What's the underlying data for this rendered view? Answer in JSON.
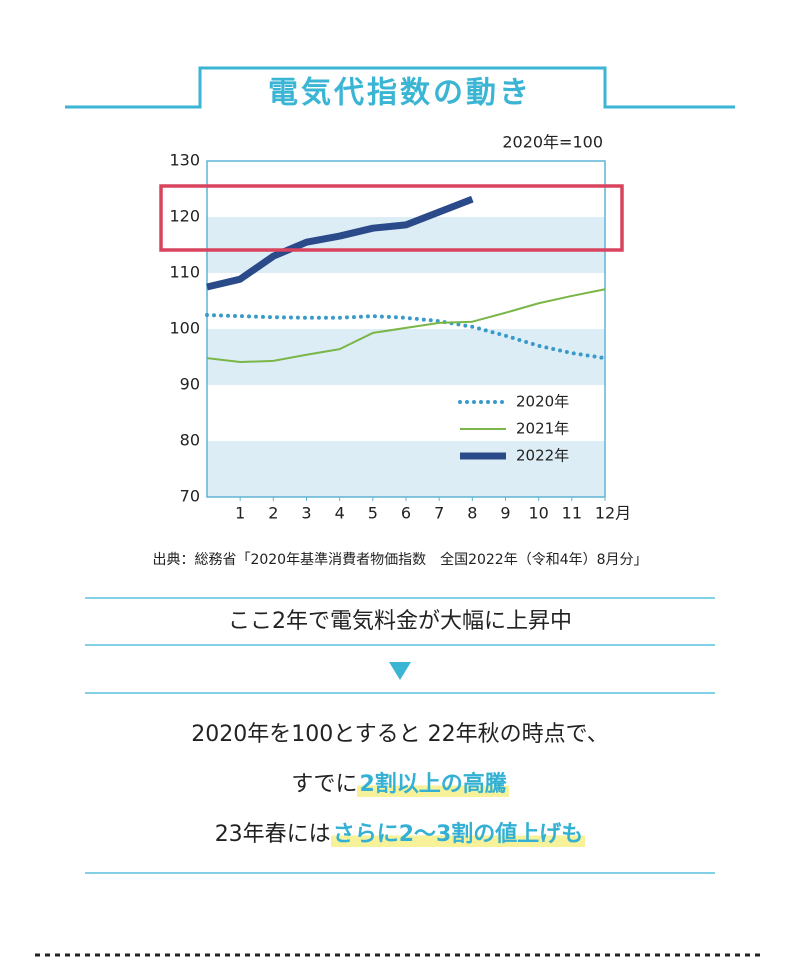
{
  "chart_data": {
    "type": "line",
    "title": "電気代指数の動き",
    "unit_note": "2020年=100",
    "source": "出典：総務省「2020年基準消費者物価指数　全国2022年（令和4年）8月分」",
    "x": [
      0,
      1,
      2,
      3,
      4,
      5,
      6,
      7,
      8,
      9,
      10,
      11,
      12
    ],
    "xlim": [
      0,
      12
    ],
    "xticks": [
      1,
      2,
      3,
      4,
      5,
      6,
      7,
      8,
      9,
      10,
      11,
      {
        "value": 12,
        "label": "12月"
      }
    ],
    "ylim": [
      70,
      130
    ],
    "yticks": [
      70,
      80,
      90,
      100,
      110,
      120,
      130
    ],
    "legend": "lower right",
    "series": [
      {
        "name": "2020年",
        "color": "#3a9ac9",
        "style": "dotted",
        "values": [
          102.5,
          102.3,
          102.1,
          102,
          102,
          102.3,
          102,
          101.4,
          100.4,
          98.8,
          97,
          95.7,
          94.8
        ]
      },
      {
        "name": "2021年",
        "color": "#7ab648",
        "style": "solid",
        "values": [
          94.8,
          94.1,
          94.3,
          95.4,
          96.4,
          99.3,
          100.2,
          101.1,
          101.3,
          102.9,
          104.6,
          105.9,
          107.1
        ]
      },
      {
        "name": "2022年",
        "color": "#2a4a8a",
        "style": "thick",
        "values": [
          107.5,
          108.9,
          113,
          115.5,
          116.6,
          118,
          118.6,
          120.9,
          123.2,
          null,
          null,
          null,
          null
        ]
      }
    ]
  },
  "message": {
    "summary": "ここ2年で電気料金が大幅に上昇中",
    "line1": "2020年を100とすると 22年秋の時点で、",
    "line2": {
      "plain": "すでに",
      "emphasis": "2割以上の高騰"
    },
    "line3": {
      "plain": "23年春には",
      "emphasis": "さらに2〜3割の値上げも"
    }
  }
}
